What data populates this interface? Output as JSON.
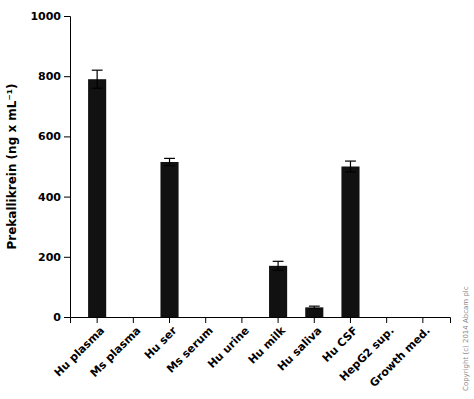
{
  "chart_data": {
    "type": "bar",
    "categories": [
      "Hu plasma",
      "Ms plasma",
      "Hu ser",
      "Ms serum",
      "Hu urine",
      "Hu milk",
      "Hu saliva",
      "Hu CSF",
      "HepG2 sup.",
      "Growth med."
    ],
    "values": [
      790,
      0,
      515,
      0,
      0,
      170,
      32,
      500,
      0,
      0
    ],
    "errors": [
      30,
      0,
      12,
      0,
      0,
      15,
      4,
      18,
      0,
      0
    ],
    "color": "#111111",
    "ylabel": "Prekallikrein (ng x mL⁻¹)",
    "ylim": [
      0,
      1000
    ],
    "yticks": [
      0,
      200,
      400,
      600,
      800,
      1000
    ],
    "annotations": [
      "Copyright (c) 2014 Abcam plc"
    ]
  }
}
